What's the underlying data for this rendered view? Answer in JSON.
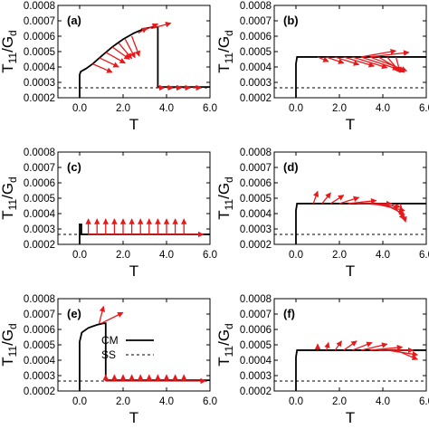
{
  "colors": {
    "curve": "#000000",
    "arrow": "#e8191b",
    "reference": "#000000"
  },
  "legend": {
    "cm_label": "CM",
    "ss_label": "SS"
  },
  "chart_data": [
    {
      "type": "line",
      "panel_label": "(a)",
      "xlabel": "T",
      "ylabel": "T11/Gd",
      "xlim": [
        -1.0,
        6.0
      ],
      "ylim": [
        0.0002,
        0.0008
      ],
      "xticks": [
        "0.0",
        "2.0",
        "4.0",
        "6.0"
      ],
      "yticks": [
        "0.0002",
        "0.0003",
        "0.0004",
        "0.0005",
        "0.0006",
        "0.0007",
        "0.0008"
      ],
      "ss_value": 0.000265,
      "series": [
        {
          "x": [
            0.0,
            0.0,
            0.05,
            0.3,
            0.6,
            1.0,
            1.5,
            2.0,
            2.5,
            3.0,
            3.4,
            3.5,
            3.6,
            3.6,
            6.0
          ],
          "y": [
            0.0002,
            0.00035,
            0.00037,
            0.00039,
            0.00042,
            0.00047,
            0.00053,
            0.00058,
            0.00062,
            0.00065,
            0.00066,
            0.00066,
            0.00066,
            0.00027,
            0.00027
          ]
        }
      ],
      "arrows": [
        {
          "x": 0.6,
          "y": 0.00042,
          "dx": 0.9,
          "dy": -5.5e-05
        },
        {
          "x": 0.9,
          "y": 0.00046,
          "dx": 0.9,
          "dy": -6e-05
        },
        {
          "x": 1.2,
          "y": 0.000495,
          "dx": 0.9,
          "dy": -7e-05
        },
        {
          "x": 1.5,
          "y": 0.00053,
          "dx": 0.8,
          "dy": -8e-05
        },
        {
          "x": 1.8,
          "y": 0.000555,
          "dx": 0.6,
          "dy": -0.0001
        },
        {
          "x": 2.1,
          "y": 0.00058,
          "dx": 0.45,
          "dy": -0.00012
        },
        {
          "x": 2.4,
          "y": 0.0006,
          "dx": 0.35,
          "dy": -0.00013
        },
        {
          "x": 2.7,
          "y": 0.00062,
          "dx": 0.4,
          "dy": 3.5e-05
        },
        {
          "x": 3.0,
          "y": 0.00064,
          "dx": 0.6,
          "dy": 4e-05
        },
        {
          "x": 3.3,
          "y": 0.00065,
          "dx": 0.9,
          "dy": 3.5e-05
        },
        {
          "x": 3.6,
          "y": 0.000265,
          "dx": 0.3,
          "dy": 0.0
        },
        {
          "x": 4.0,
          "y": 0.000265,
          "dx": 0.3,
          "dy": 0.0
        },
        {
          "x": 4.4,
          "y": 0.000265,
          "dx": 0.3,
          "dy": 0.0
        },
        {
          "x": 4.8,
          "y": 0.000265,
          "dx": 0.3,
          "dy": 0.0
        },
        {
          "x": 5.2,
          "y": 0.000265,
          "dx": 0.4,
          "dy": 0.0
        }
      ]
    },
    {
      "type": "line",
      "panel_label": "(b)",
      "xlabel": "T",
      "ylabel": "T11/Gd",
      "xlim": [
        -1.0,
        6.0
      ],
      "ylim": [
        0.0002,
        0.0008
      ],
      "xticks": [
        "0.0",
        "2.0",
        "4.0",
        "6.0"
      ],
      "yticks": [
        "0.0002",
        "0.0003",
        "0.0004",
        "0.0005",
        "0.0006",
        "0.0007",
        "0.0008"
      ],
      "ss_value": 0.000265,
      "series": [
        {
          "x": [
            0.0,
            0.0,
            0.05,
            0.2,
            6.0
          ],
          "y": [
            0.0002,
            0.00042,
            0.000465,
            0.000465,
            0.000465
          ]
        }
      ],
      "arrows": [
        {
          "x": 1.0,
          "y": 0.000465,
          "dx": 0.5,
          "dy": -3e-05
        },
        {
          "x": 1.4,
          "y": 0.000465,
          "dx": 0.8,
          "dy": -4e-05
        },
        {
          "x": 1.8,
          "y": 0.000465,
          "dx": 1.1,
          "dy": -5e-05
        },
        {
          "x": 2.2,
          "y": 0.000465,
          "dx": 1.4,
          "dy": -6e-05
        },
        {
          "x": 2.6,
          "y": 0.000465,
          "dx": 1.6,
          "dy": -7e-05
        },
        {
          "x": 3.0,
          "y": 0.000465,
          "dx": 1.7,
          "dy": -8e-05
        },
        {
          "x": 3.4,
          "y": 0.000465,
          "dx": 1.7,
          "dy": -9e-05
        },
        {
          "x": 3.8,
          "y": 0.000465,
          "dx": 1.2,
          "dy": -0.0001
        },
        {
          "x": 4.2,
          "y": 0.000465,
          "dx": 0.6,
          "dy": -0.0001
        },
        {
          "x": 4.6,
          "y": 0.000465,
          "dx": 0.2,
          "dy": -0.0001
        },
        {
          "x": 3.0,
          "y": 0.000465,
          "dx": 1.6,
          "dy": 4e-05
        },
        {
          "x": 3.4,
          "y": 0.000465,
          "dx": 1.8,
          "dy": 3e-05
        }
      ]
    },
    {
      "type": "line",
      "panel_label": "(c)",
      "xlabel": "T",
      "ylabel": "T11/Gd",
      "xlim": [
        -1.0,
        6.0
      ],
      "ylim": [
        0.0002,
        0.0008
      ],
      "xticks": [
        "0.0",
        "2.0",
        "4.0",
        "6.0"
      ],
      "yticks": [
        "0.0002",
        "0.0003",
        "0.0004",
        "0.0005",
        "0.0006",
        "0.0007",
        "0.0008"
      ],
      "ss_value": 0.000265,
      "series": [
        {
          "x": [
            0.0,
            0.0,
            0.02,
            0.08,
            0.08,
            6.0
          ],
          "y": [
            0.0002,
            0.00033,
            0.00033,
            0.00033,
            0.000265,
            0.000265
          ]
        }
      ],
      "arrows": [
        {
          "x": 0.4,
          "y": 0.000265,
          "dx": 0.0,
          "dy": 0.0001
        },
        {
          "x": 0.8,
          "y": 0.000265,
          "dx": 0.0,
          "dy": 0.0001
        },
        {
          "x": 1.2,
          "y": 0.000265,
          "dx": 0.0,
          "dy": 0.0001
        },
        {
          "x": 1.6,
          "y": 0.000265,
          "dx": 0.0,
          "dy": 0.0001
        },
        {
          "x": 2.0,
          "y": 0.000265,
          "dx": 0.0,
          "dy": 0.0001
        },
        {
          "x": 2.4,
          "y": 0.000265,
          "dx": 0.0,
          "dy": 0.0001
        },
        {
          "x": 2.8,
          "y": 0.000265,
          "dx": 0.0,
          "dy": 0.0001
        },
        {
          "x": 3.2,
          "y": 0.000265,
          "dx": 0.0,
          "dy": 0.0001
        },
        {
          "x": 3.6,
          "y": 0.000265,
          "dx": 0.0,
          "dy": 0.0001
        },
        {
          "x": 4.0,
          "y": 0.000265,
          "dx": 0.0,
          "dy": 0.0001
        },
        {
          "x": 4.4,
          "y": 0.000265,
          "dx": 0.0,
          "dy": 0.0001
        },
        {
          "x": 4.8,
          "y": 0.000265,
          "dx": 0.0,
          "dy": 0.0001
        },
        {
          "x": 0.4,
          "y": 0.000265,
          "dx": 5.3,
          "dy": 0.0
        }
      ]
    },
    {
      "type": "line",
      "panel_label": "(d)",
      "xlabel": "T",
      "ylabel": "T11/Gd",
      "xlim": [
        -1.0,
        6.0
      ],
      "ylim": [
        0.0002,
        0.0008
      ],
      "xticks": [
        "0.0",
        "2.0",
        "4.0",
        "6.0"
      ],
      "yticks": [
        "0.0002",
        "0.0003",
        "0.0004",
        "0.0005",
        "0.0006",
        "0.0007",
        "0.0008"
      ],
      "ss_value": 0.000265,
      "series": [
        {
          "x": [
            0.0,
            0.0,
            0.05,
            0.2,
            6.0
          ],
          "y": [
            0.0002,
            0.00042,
            0.000465,
            0.000465,
            0.000465
          ]
        }
      ],
      "arrows": [
        {
          "x": 0.8,
          "y": 0.000465,
          "dx": 0.2,
          "dy": 8e-05
        },
        {
          "x": 1.2,
          "y": 0.000465,
          "dx": 0.4,
          "dy": 7e-05
        },
        {
          "x": 1.6,
          "y": 0.000465,
          "dx": 0.6,
          "dy": 5.5e-05
        },
        {
          "x": 2.0,
          "y": 0.000465,
          "dx": 0.9,
          "dy": 4e-05
        },
        {
          "x": 2.4,
          "y": 0.000465,
          "dx": 1.3,
          "dy": 2e-05
        },
        {
          "x": 2.8,
          "y": 0.000465,
          "dx": 1.6,
          "dy": 0.0
        },
        {
          "x": 3.2,
          "y": 0.000465,
          "dx": 1.6,
          "dy": -2e-05
        },
        {
          "x": 3.6,
          "y": 0.000465,
          "dx": 1.4,
          "dy": -4.5e-05
        },
        {
          "x": 4.0,
          "y": 0.000465,
          "dx": 1.0,
          "dy": -7e-05
        },
        {
          "x": 4.4,
          "y": 0.000465,
          "dx": 0.6,
          "dy": -0.0001
        },
        {
          "x": 4.8,
          "y": 0.000465,
          "dx": 0.25,
          "dy": -0.00012
        }
      ]
    },
    {
      "type": "line",
      "panel_label": "(e)",
      "xlabel": "T",
      "ylabel": "T11/Gd",
      "xlim": [
        -1.0,
        6.0
      ],
      "ylim": [
        0.0002,
        0.0008
      ],
      "xticks": [
        "0.0",
        "2.0",
        "4.0",
        "6.0"
      ],
      "yticks": [
        "0.0002",
        "0.0003",
        "0.0004",
        "0.0005",
        "0.0006",
        "0.0007",
        "0.0008"
      ],
      "ss_value": 0.000265,
      "legend": [
        "CM",
        "SS"
      ],
      "series": [
        {
          "x": [
            0.0,
            0.0,
            0.1,
            0.4,
            0.8,
            1.1,
            1.2,
            1.2,
            6.0
          ],
          "y": [
            0.0002,
            0.00052,
            0.00058,
            0.00061,
            0.00063,
            0.00064,
            0.00064,
            0.00027,
            0.00027
          ]
        }
      ],
      "arrows": [
        {
          "x": 0.9,
          "y": 0.00064,
          "dx": 0.2,
          "dy": 0.00011
        },
        {
          "x": 1.0,
          "y": 0.00064,
          "dx": 1.0,
          "dy": 7e-05
        },
        {
          "x": 1.2,
          "y": 0.000265,
          "dx": 0.0,
          "dy": 4e-05
        },
        {
          "x": 1.6,
          "y": 0.000265,
          "dx": 0.0,
          "dy": 4e-05
        },
        {
          "x": 2.0,
          "y": 0.000265,
          "dx": 0.0,
          "dy": 4e-05
        },
        {
          "x": 2.4,
          "y": 0.000265,
          "dx": 0.0,
          "dy": 4e-05
        },
        {
          "x": 2.8,
          "y": 0.000265,
          "dx": 0.0,
          "dy": 4e-05
        },
        {
          "x": 3.2,
          "y": 0.000265,
          "dx": 0.0,
          "dy": 4e-05
        },
        {
          "x": 3.6,
          "y": 0.000265,
          "dx": 0.0,
          "dy": 4e-05
        },
        {
          "x": 4.0,
          "y": 0.000265,
          "dx": 0.0,
          "dy": 4e-05
        },
        {
          "x": 4.4,
          "y": 0.000265,
          "dx": 0.0,
          "dy": 4e-05
        },
        {
          "x": 4.8,
          "y": 0.000265,
          "dx": 0.0,
          "dy": 4e-05
        },
        {
          "x": 1.2,
          "y": 0.000265,
          "dx": 4.6,
          "dy": 0.0
        }
      ]
    },
    {
      "type": "line",
      "panel_label": "(f)",
      "xlabel": "T",
      "ylabel": "T11/Gd",
      "xlim": [
        -1.0,
        6.0
      ],
      "ylim": [
        0.0002,
        0.0008
      ],
      "xticks": [
        "0.0",
        "2.0",
        "4.0",
        "6.0"
      ],
      "yticks": [
        "0.0002",
        "0.0003",
        "0.0004",
        "0.0005",
        "0.0006",
        "0.0007",
        "0.0008"
      ],
      "ss_value": 0.000265,
      "series": [
        {
          "x": [
            0.0,
            0.0,
            0.05,
            0.2,
            6.0
          ],
          "y": [
            0.0002,
            0.00042,
            0.000465,
            0.000465,
            0.000465
          ]
        }
      ],
      "arrows": [
        {
          "x": 1.0,
          "y": 0.000465,
          "dx": 0.0,
          "dy": 4e-05
        },
        {
          "x": 1.4,
          "y": 0.000465,
          "dx": 0.1,
          "dy": 5e-05
        },
        {
          "x": 1.8,
          "y": 0.000465,
          "dx": 0.3,
          "dy": 6e-05
        },
        {
          "x": 2.2,
          "y": 0.000465,
          "dx": 0.6,
          "dy": 6e-05
        },
        {
          "x": 2.6,
          "y": 0.000465,
          "dx": 0.9,
          "dy": 5e-05
        },
        {
          "x": 3.0,
          "y": 0.000465,
          "dx": 1.2,
          "dy": 4e-05
        },
        {
          "x": 3.4,
          "y": 0.000465,
          "dx": 1.5,
          "dy": 2e-05
        },
        {
          "x": 3.8,
          "y": 0.000465,
          "dx": 1.6,
          "dy": 0.0
        },
        {
          "x": 4.2,
          "y": 0.000465,
          "dx": 1.4,
          "dy": -3e-05
        },
        {
          "x": 4.6,
          "y": 0.000465,
          "dx": 1.0,
          "dy": -6e-05
        }
      ]
    }
  ]
}
